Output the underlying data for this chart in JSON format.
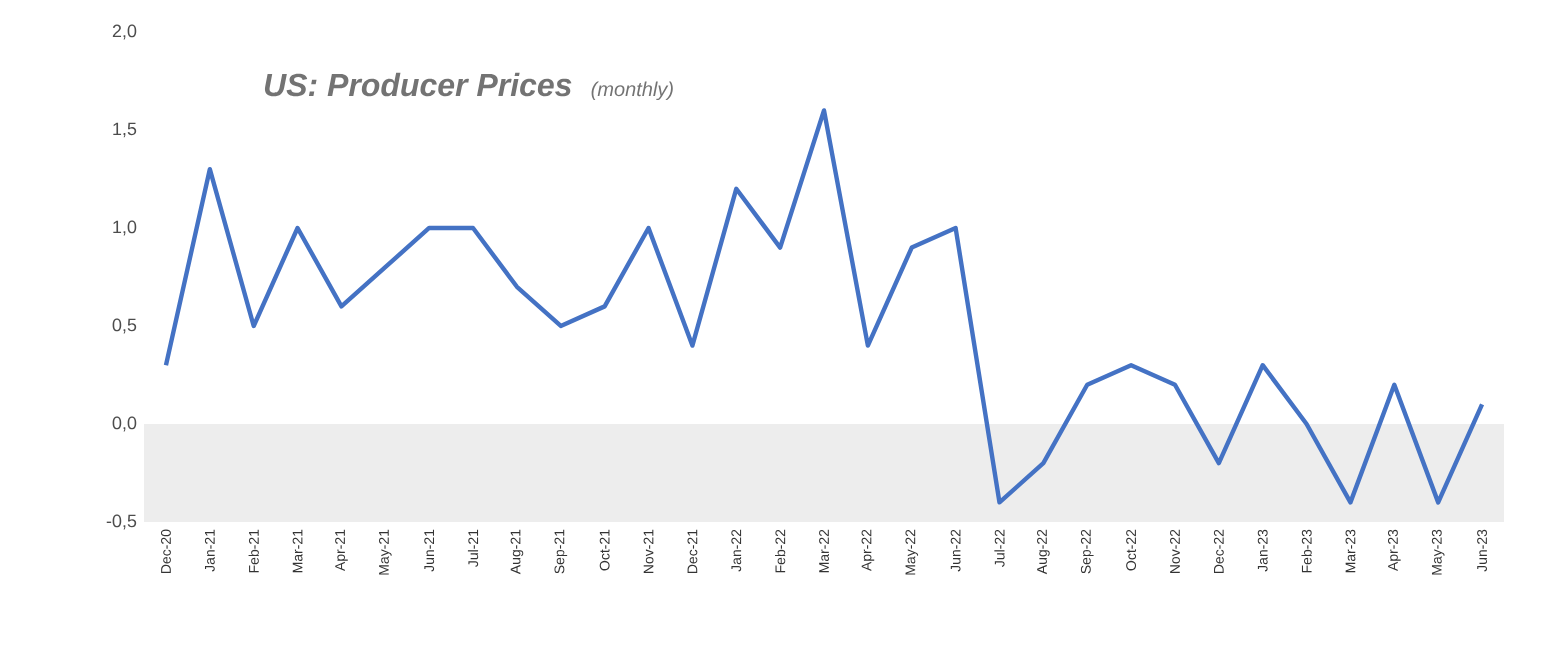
{
  "chart_data": {
    "type": "line",
    "title": "US: Producer Prices",
    "subtitle": "(monthly)",
    "categories": [
      "Dec-20",
      "Jan-21",
      "Feb-21",
      "Mar-21",
      "Apr-21",
      "May-21",
      "Jun-21",
      "Jul-21",
      "Aug-21",
      "Sep-21",
      "Oct-21",
      "Nov-21",
      "Dec-21",
      "Jan-22",
      "Feb-22",
      "Mar-22",
      "Apr-22",
      "May-22",
      "Jun-22",
      "Jul-22",
      "Aug-22",
      "Sep-22",
      "Oct-22",
      "Nov-22",
      "Dec-22",
      "Jan-23",
      "Feb-23",
      "Mar-23",
      "Apr-23",
      "May-23",
      "Jun-23"
    ],
    "values": [
      0.3,
      1.3,
      0.5,
      1.0,
      0.6,
      0.8,
      1.0,
      1.0,
      0.7,
      0.5,
      0.6,
      1.0,
      0.4,
      1.2,
      0.9,
      1.6,
      0.4,
      0.9,
      1.0,
      -0.4,
      -0.2,
      0.2,
      0.3,
      0.2,
      -0.2,
      0.3,
      0.0,
      -0.4,
      0.2,
      -0.4,
      0.1
    ],
    "color": "#4472c4",
    "ylim": [
      -0.5,
      2.0
    ],
    "yticks": [
      {
        "value": -0.5,
        "label": "-0,5"
      },
      {
        "value": 0,
        "label": "0,0"
      },
      {
        "value": 0.5,
        "label": "0,5"
      },
      {
        "value": 1.0,
        "label": "1,0"
      },
      {
        "value": 1.5,
        "label": "1,5"
      },
      {
        "value": 2.0,
        "label": "2,0"
      }
    ],
    "bands": [
      {
        "axis": "y",
        "from": -0.5,
        "to": 0,
        "color": "#ededed"
      }
    ],
    "grid": false,
    "marker": "none",
    "line_style": "solid"
  }
}
